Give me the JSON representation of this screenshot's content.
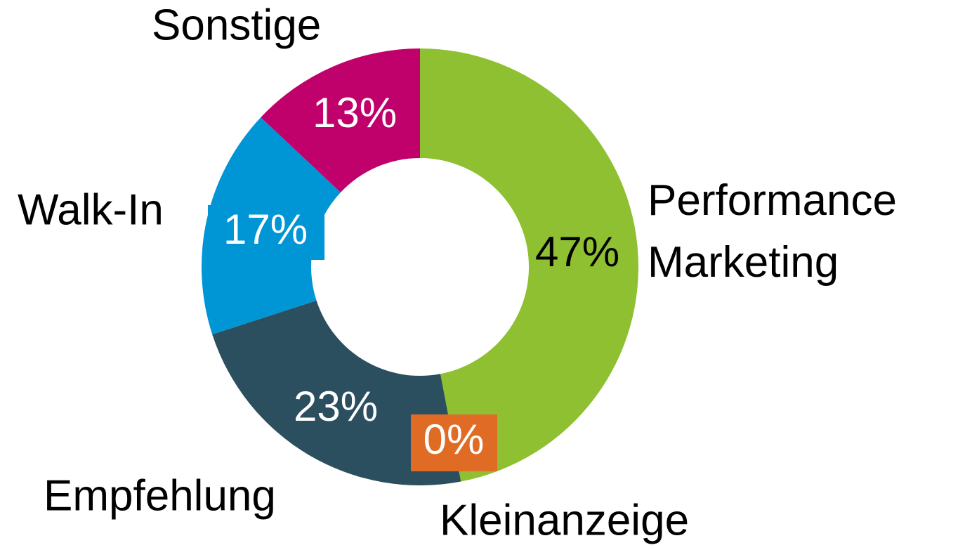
{
  "chart_data": {
    "type": "donut",
    "categories": [
      "Performance Marketing",
      "Kleinanzeige",
      "Empfehlung",
      "Walk-In",
      "Sonstige"
    ],
    "values": [
      47,
      0,
      23,
      17,
      13
    ],
    "value_labels": [
      "47%",
      "0%",
      "23%",
      "17%",
      "13%"
    ],
    "colors": [
      "#8fc031",
      "#e06b24",
      "#2b4f5f",
      "#0095d5",
      "#c0006b"
    ]
  }
}
